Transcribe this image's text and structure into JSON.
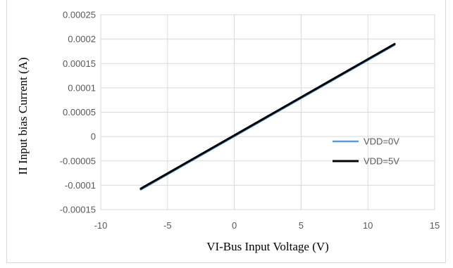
{
  "chart_data": {
    "type": "line",
    "title": "",
    "xlabel": "VI-Bus Input Voltage (V)",
    "ylabel": "II Input bias Current (A)",
    "xlim": [
      -10,
      15
    ],
    "ylim": [
      -0.00015,
      0.00025
    ],
    "x_ticks": [
      -10,
      -5,
      0,
      5,
      10,
      15
    ],
    "x_tick_labels": [
      "-10",
      "-5",
      "0",
      "5",
      "10",
      "15"
    ],
    "y_ticks": [
      -0.00015,
      -0.0001,
      -5e-05,
      0,
      5e-05,
      0.0001,
      0.00015,
      0.0002,
      0.00025
    ],
    "y_tick_labels": [
      "-0.00015",
      "-0.0001",
      "-0.00005",
      "0",
      "0.00005",
      "0.0001",
      "0.00015",
      "0.0002",
      "0.00025"
    ],
    "grid": true,
    "legend_position": "right",
    "series": [
      {
        "name": "VDD=0V",
        "color": "#5b9bd5",
        "x": [
          -7,
          12
        ],
        "y": [
          -0.000109,
          0.000188
        ]
      },
      {
        "name": "VDD=5V",
        "color": "#000000",
        "x": [
          -7,
          12
        ],
        "y": [
          -0.000107,
          0.00019
        ]
      }
    ]
  }
}
